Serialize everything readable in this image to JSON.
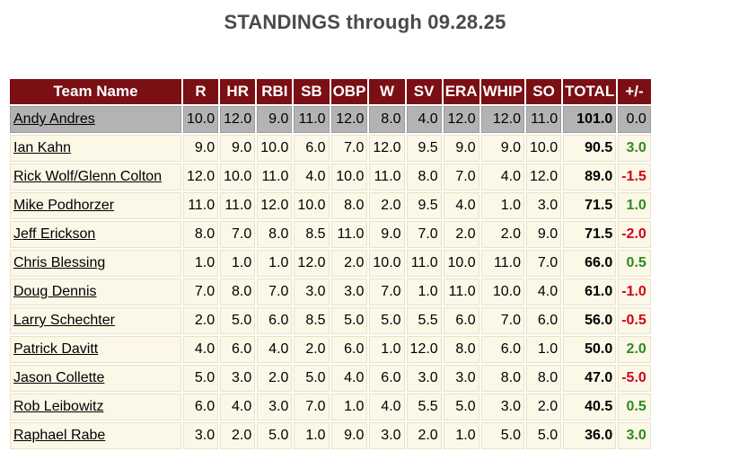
{
  "title": "STANDINGS through 09.28.25",
  "colors": {
    "header_bg": "#7a0f14",
    "header_text": "#ffffff",
    "row_bg": "#fbf8e8",
    "highlight_bg": "#b3b3b3",
    "positive": "#2e8b1f",
    "negative": "#d4001a"
  },
  "columns": [
    "Team Name",
    "R",
    "HR",
    "RBI",
    "SB",
    "OBP",
    "W",
    "SV",
    "ERA",
    "WHIP",
    "SO",
    "TOTAL",
    "+/-"
  ],
  "rows": [
    {
      "team": "Andy Andres",
      "R": "10.0",
      "HR": "12.0",
      "RBI": "9.0",
      "SB": "11.0",
      "OBP": "12.0",
      "W": "8.0",
      "SV": "4.0",
      "ERA": "12.0",
      "WHIP": "12.0",
      "SO": "11.0",
      "TOTAL": "101.0",
      "diff": "0.0",
      "trend": "neutral",
      "highlight": true
    },
    {
      "team": "Ian Kahn",
      "R": "9.0",
      "HR": "9.0",
      "RBI": "10.0",
      "SB": "6.0",
      "OBP": "7.0",
      "W": "12.0",
      "SV": "9.5",
      "ERA": "9.0",
      "WHIP": "9.0",
      "SO": "10.0",
      "TOTAL": "90.5",
      "diff": "3.0",
      "trend": "positive",
      "highlight": false
    },
    {
      "team": "Rick Wolf/Glenn Colton",
      "R": "12.0",
      "HR": "10.0",
      "RBI": "11.0",
      "SB": "4.0",
      "OBP": "10.0",
      "W": "11.0",
      "SV": "8.0",
      "ERA": "7.0",
      "WHIP": "4.0",
      "SO": "12.0",
      "TOTAL": "89.0",
      "diff": "-1.5",
      "trend": "negative",
      "highlight": false
    },
    {
      "team": "Mike Podhorzer",
      "R": "11.0",
      "HR": "11.0",
      "RBI": "12.0",
      "SB": "10.0",
      "OBP": "8.0",
      "W": "2.0",
      "SV": "9.5",
      "ERA": "4.0",
      "WHIP": "1.0",
      "SO": "3.0",
      "TOTAL": "71.5",
      "diff": "1.0",
      "trend": "positive",
      "highlight": false
    },
    {
      "team": "Jeff Erickson",
      "R": "8.0",
      "HR": "7.0",
      "RBI": "8.0",
      "SB": "8.5",
      "OBP": "11.0",
      "W": "9.0",
      "SV": "7.0",
      "ERA": "2.0",
      "WHIP": "2.0",
      "SO": "9.0",
      "TOTAL": "71.5",
      "diff": "-2.0",
      "trend": "negative",
      "highlight": false
    },
    {
      "team": "Chris Blessing",
      "R": "1.0",
      "HR": "1.0",
      "RBI": "1.0",
      "SB": "12.0",
      "OBP": "2.0",
      "W": "10.0",
      "SV": "11.0",
      "ERA": "10.0",
      "WHIP": "11.0",
      "SO": "7.0",
      "TOTAL": "66.0",
      "diff": "0.5",
      "trend": "positive",
      "highlight": false
    },
    {
      "team": "Doug Dennis",
      "R": "7.0",
      "HR": "8.0",
      "RBI": "7.0",
      "SB": "3.0",
      "OBP": "3.0",
      "W": "7.0",
      "SV": "1.0",
      "ERA": "11.0",
      "WHIP": "10.0",
      "SO": "4.0",
      "TOTAL": "61.0",
      "diff": "-1.0",
      "trend": "negative",
      "highlight": false
    },
    {
      "team": "Larry Schechter",
      "R": "2.0",
      "HR": "5.0",
      "RBI": "6.0",
      "SB": "8.5",
      "OBP": "5.0",
      "W": "5.0",
      "SV": "5.5",
      "ERA": "6.0",
      "WHIP": "7.0",
      "SO": "6.0",
      "TOTAL": "56.0",
      "diff": "-0.5",
      "trend": "negative",
      "highlight": false
    },
    {
      "team": "Patrick Davitt",
      "R": "4.0",
      "HR": "6.0",
      "RBI": "4.0",
      "SB": "2.0",
      "OBP": "6.0",
      "W": "1.0",
      "SV": "12.0",
      "ERA": "8.0",
      "WHIP": "6.0",
      "SO": "1.0",
      "TOTAL": "50.0",
      "diff": "2.0",
      "trend": "positive",
      "highlight": false
    },
    {
      "team": "Jason Collette",
      "R": "5.0",
      "HR": "3.0",
      "RBI": "2.0",
      "SB": "5.0",
      "OBP": "4.0",
      "W": "6.0",
      "SV": "3.0",
      "ERA": "3.0",
      "WHIP": "8.0",
      "SO": "8.0",
      "TOTAL": "47.0",
      "diff": "-5.0",
      "trend": "negative",
      "highlight": false
    },
    {
      "team": "Rob Leibowitz",
      "R": "6.0",
      "HR": "4.0",
      "RBI": "3.0",
      "SB": "7.0",
      "OBP": "1.0",
      "W": "4.0",
      "SV": "5.5",
      "ERA": "5.0",
      "WHIP": "3.0",
      "SO": "2.0",
      "TOTAL": "40.5",
      "diff": "0.5",
      "trend": "positive",
      "highlight": false
    },
    {
      "team": "Raphael Rabe",
      "R": "3.0",
      "HR": "2.0",
      "RBI": "5.0",
      "SB": "1.0",
      "OBP": "9.0",
      "W": "3.0",
      "SV": "2.0",
      "ERA": "1.0",
      "WHIP": "5.0",
      "SO": "5.0",
      "TOTAL": "36.0",
      "diff": "3.0",
      "trend": "positive",
      "highlight": false
    }
  ]
}
